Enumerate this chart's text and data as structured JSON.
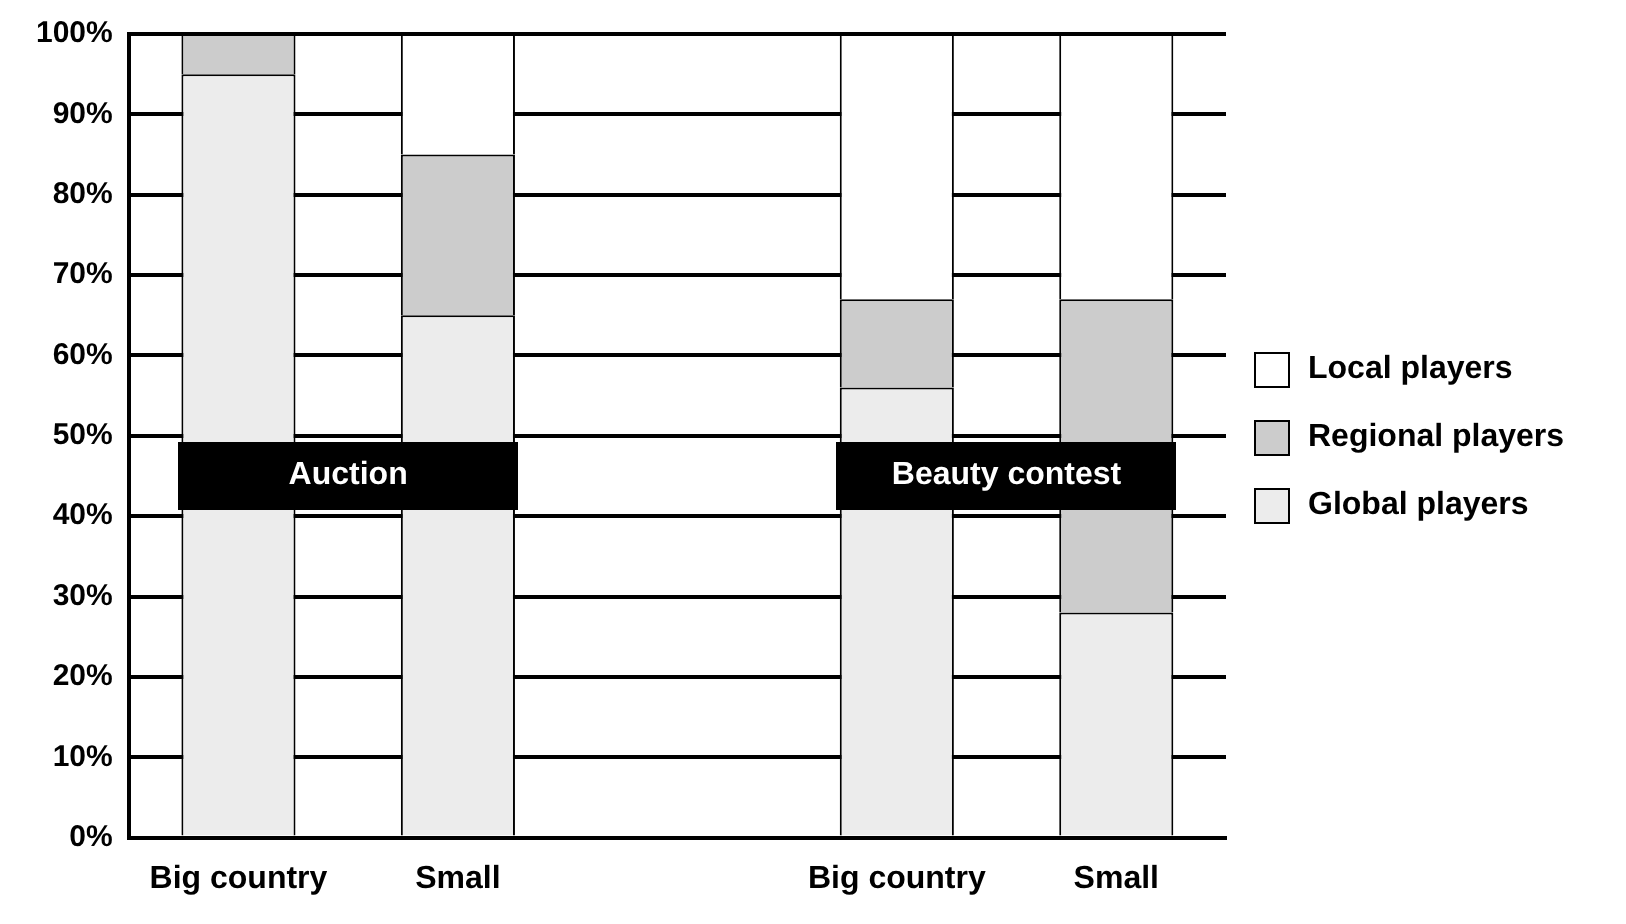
{
  "chart_data": {
    "type": "bar",
    "stacked": true,
    "categories": [
      "Big country",
      "Small",
      null,
      "Big country",
      "Small"
    ],
    "series": [
      {
        "name": "Global players",
        "color": "#ececec",
        "values": [
          95,
          65,
          null,
          56,
          28
        ]
      },
      {
        "name": "Regional players",
        "color": "#cccccc",
        "values": [
          5,
          20,
          null,
          11,
          39
        ]
      },
      {
        "name": "Local players",
        "color": "#ffffff",
        "values": [
          0,
          15,
          null,
          33,
          33
        ]
      }
    ],
    "ylim": [
      0,
      100
    ],
    "yticks": [
      {
        "value": 0,
        "label": "0%"
      },
      {
        "value": 10,
        "label": "10%"
      },
      {
        "value": 20,
        "label": "20%"
      },
      {
        "value": 30,
        "label": "30%"
      },
      {
        "value": 40,
        "label": "40%"
      },
      {
        "value": 50,
        "label": "50%"
      },
      {
        "value": 60,
        "label": "60%"
      },
      {
        "value": 70,
        "label": "70%"
      },
      {
        "value": 80,
        "label": "80%"
      },
      {
        "value": 90,
        "label": "90%"
      },
      {
        "value": 100,
        "label": "100%"
      }
    ],
    "grid": "y",
    "legend": "right",
    "annotations": [
      "Auction",
      "Beauty contest"
    ]
  }
}
